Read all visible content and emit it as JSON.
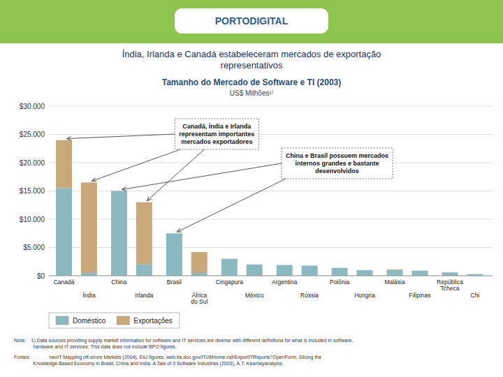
{
  "chart_data": {
    "type": "bar",
    "stacked": true,
    "title": "Índia, Irlanda e Canadá estabeleceram mercados de exportação\nrepresentativos",
    "subtitle": "Tamanho do Mercado de Software e TI (2003)",
    "ylabel": "US$ Milhões¹⁾",
    "logo": "PORTODIGITAL",
    "categories": [
      "Canadá",
      "Índia",
      "China",
      "Irlanda",
      "Brasil",
      "África\ndo Sul",
      "Cingapura",
      "México",
      "Argentina",
      "Rússia",
      "Polônia",
      "Hungria",
      "Malásia",
      "Filipinas",
      "República\nTcheca",
      "Chi"
    ],
    "series": [
      {
        "name": "Doméstico",
        "color": "#8ab9c2",
        "values": [
          15500,
          500,
          15000,
          2000,
          7500,
          500,
          3000,
          2000,
          1900,
          1800,
          1400,
          1000,
          1000,
          900,
          600,
          300
        ]
      },
      {
        "name": "Exportações",
        "color": "#c9a87a",
        "values": [
          8500,
          16000,
          0,
          11000,
          0,
          3700,
          0,
          0,
          0,
          0,
          0,
          0,
          100,
          0,
          0,
          0
        ]
      }
    ],
    "ylim": [
      0,
      30000
    ],
    "yticks": [
      {
        "value": 0,
        "label": "$0"
      },
      {
        "value": 5000,
        "label": "$5.000"
      },
      {
        "value": 10000,
        "label": "$10.000"
      },
      {
        "value": 15000,
        "label": "$15.000"
      },
      {
        "value": 20000,
        "label": "$20.000"
      },
      {
        "value": 25000,
        "label": "$25.000"
      },
      {
        "value": 30000,
        "label": "$30.000"
      }
    ],
    "grid": true,
    "legend": "bottom-left",
    "annotations": [
      "Canadá, Índia e Irlanda\nrepresentam importantes\nmercados exportadores",
      "China e Brasil possuem mercados\ninternos grandes e bastante\ndesenvolvidos"
    ],
    "note": "Nota:    1) Data sources providing supply market information for software and IT services are diverse with different definitions for what is included in software,\n              hardware and IT services. This data does not include BPO figures.",
    "source": "Fontes:              neoIT Mapping off-shore Markets (2004), EIU figures, web.ita.doc.gov/ITI/itiHome.nsf/ExportITReports?OpenForm, Slicing the\n              Knowledge-Based Economy in Brasil, China and India: A Tale of 3 Software Industries (2003), A.T. Kearneyanalysis"
  }
}
